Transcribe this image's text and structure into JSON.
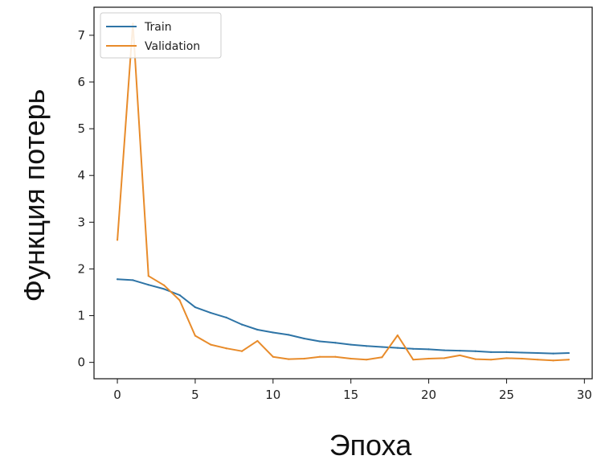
{
  "chart_data": {
    "type": "line",
    "xlabel": "Эпоха",
    "ylabel": "Функция потерь",
    "xlim": [
      -1.5,
      30.5
    ],
    "ylim": [
      -0.35,
      7.6
    ],
    "xticks": [
      0,
      5,
      10,
      15,
      20,
      25,
      30
    ],
    "yticks": [
      0,
      1,
      2,
      3,
      4,
      5,
      6,
      7
    ],
    "legend_position": "top-left",
    "grid": false,
    "x": [
      0,
      1,
      2,
      3,
      4,
      5,
      6,
      7,
      8,
      9,
      10,
      11,
      12,
      13,
      14,
      15,
      16,
      17,
      18,
      19,
      20,
      21,
      22,
      23,
      24,
      25,
      26,
      27,
      28,
      29
    ],
    "series": [
      {
        "name": "Train",
        "color": "#2e74a6",
        "values": [
          1.78,
          1.76,
          1.66,
          1.57,
          1.44,
          1.18,
          1.06,
          0.96,
          0.81,
          0.7,
          0.64,
          0.59,
          0.51,
          0.45,
          0.42,
          0.38,
          0.35,
          0.33,
          0.31,
          0.29,
          0.28,
          0.26,
          0.25,
          0.24,
          0.22,
          0.22,
          0.21,
          0.2,
          0.19,
          0.2
        ]
      },
      {
        "name": "Validation",
        "color": "#e88b2a",
        "values": [
          2.62,
          7.25,
          1.85,
          1.65,
          1.33,
          0.57,
          0.38,
          0.3,
          0.24,
          0.46,
          0.12,
          0.07,
          0.08,
          0.12,
          0.12,
          0.08,
          0.06,
          0.11,
          0.58,
          0.06,
          0.08,
          0.09,
          0.15,
          0.07,
          0.06,
          0.09,
          0.08,
          0.06,
          0.04,
          0.06
        ]
      }
    ]
  }
}
